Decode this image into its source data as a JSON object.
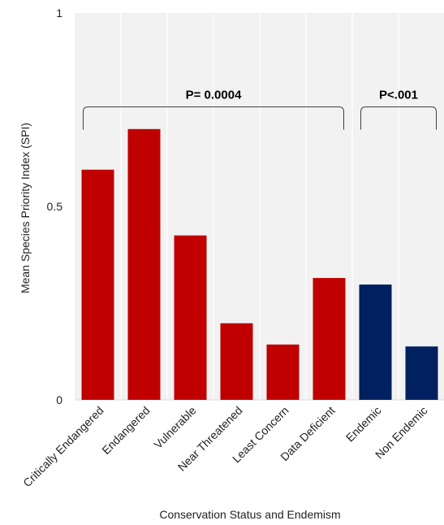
{
  "chart_data": {
    "type": "bar",
    "title": "",
    "xlabel": "Conservation Status and Endemism",
    "ylabel": "Mean Species Priority Index (SPI)",
    "ylim": [
      0,
      1
    ],
    "yticks": [
      0,
      0.5,
      1
    ],
    "ytick_labels": [
      "0",
      "0.5",
      "1"
    ],
    "grid": "vertical lines",
    "categories": [
      "Critically Endangered",
      "Endangered",
      "Vulnerable",
      "Near Threatened",
      "Least Concern",
      "Data Deficient",
      "Endemic",
      "Non Endemic"
    ],
    "values": [
      0.595,
      0.7,
      0.425,
      0.198,
      0.143,
      0.315,
      0.298,
      0.138
    ],
    "colors": [
      "#c00000",
      "#c00000",
      "#c00000",
      "#c00000",
      "#c00000",
      "#c00000",
      "#002060",
      "#002060"
    ],
    "plot_background": "#f2f2f2",
    "annotations": [
      {
        "text": "P= 0.0004",
        "from_category": 0,
        "to_category": 5,
        "y": 0.77
      },
      {
        "text": "P<.001",
        "from_category": 6,
        "to_category": 7,
        "y": 0.77
      }
    ]
  }
}
